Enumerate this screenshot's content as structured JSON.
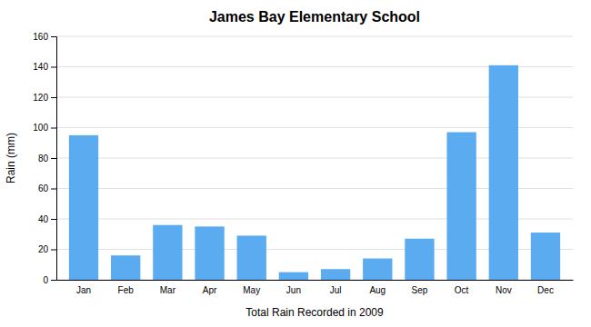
{
  "chart_data": {
    "type": "bar",
    "title": "James Bay Elementary School",
    "xlabel": "Total Rain Recorded in 2009",
    "ylabel": "Rain (mm)",
    "categories": [
      "Jan",
      "Feb",
      "Mar",
      "Apr",
      "May",
      "Jun",
      "Jul",
      "Aug",
      "Sep",
      "Oct",
      "Nov",
      "Dec"
    ],
    "values": [
      95,
      16,
      36,
      35,
      29,
      5,
      7,
      14,
      27,
      97,
      141,
      31
    ],
    "color": "#5aabf0",
    "ylim": [
      0,
      160
    ],
    "yticks": [
      0,
      20,
      40,
      60,
      80,
      100,
      120,
      140,
      160
    ],
    "grid": true
  }
}
